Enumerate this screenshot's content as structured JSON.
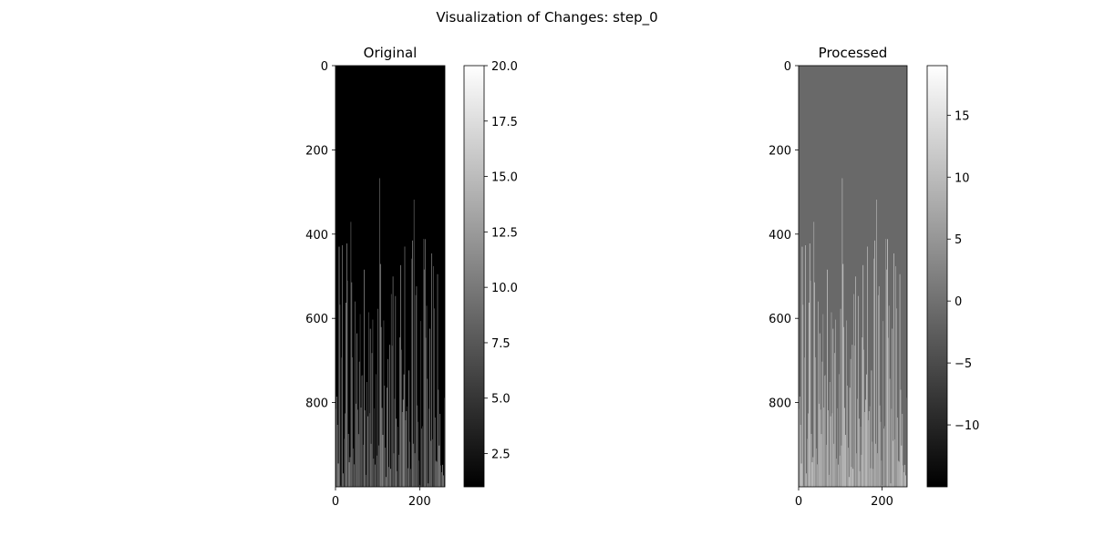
{
  "figure": {
    "suptitle": "Visualization of Changes: step_0"
  },
  "chart_data": [
    {
      "type": "heatmap",
      "title": "Original",
      "colormap": "gray",
      "image_shape": [
        1000,
        260
      ],
      "xlim": [
        0,
        260
      ],
      "ylim": [
        1000,
        0
      ],
      "x_ticks": [
        0,
        200
      ],
      "y_ticks": [
        0,
        200,
        400,
        600,
        800
      ],
      "background_value": 1.0,
      "colorbar": {
        "range": [
          1.0,
          20.0
        ],
        "ticks": [
          "2.5",
          "5.0",
          "7.5",
          "10.0",
          "12.5",
          "15.0",
          "17.5",
          "20.0"
        ],
        "tick_values": [
          2.5,
          5.0,
          7.5,
          10.0,
          12.5,
          15.0,
          17.5,
          20.0
        ]
      },
      "xlabel": "",
      "ylabel": ""
    },
    {
      "type": "heatmap",
      "title": "Processed",
      "colormap": "gray",
      "image_shape": [
        1000,
        260
      ],
      "xlim": [
        0,
        260
      ],
      "ylim": [
        1000,
        0
      ],
      "x_ticks": [
        0,
        200
      ],
      "y_ticks": [
        0,
        200,
        400,
        600,
        800
      ],
      "background_value": -1.0,
      "colorbar": {
        "range": [
          -15.0,
          19.0
        ],
        "ticks": [
          "−10",
          "−5",
          "0",
          "5",
          "10",
          "15"
        ],
        "tick_values": [
          -10,
          -5,
          0,
          5,
          10,
          15
        ]
      },
      "xlabel": "",
      "ylabel": ""
    }
  ]
}
